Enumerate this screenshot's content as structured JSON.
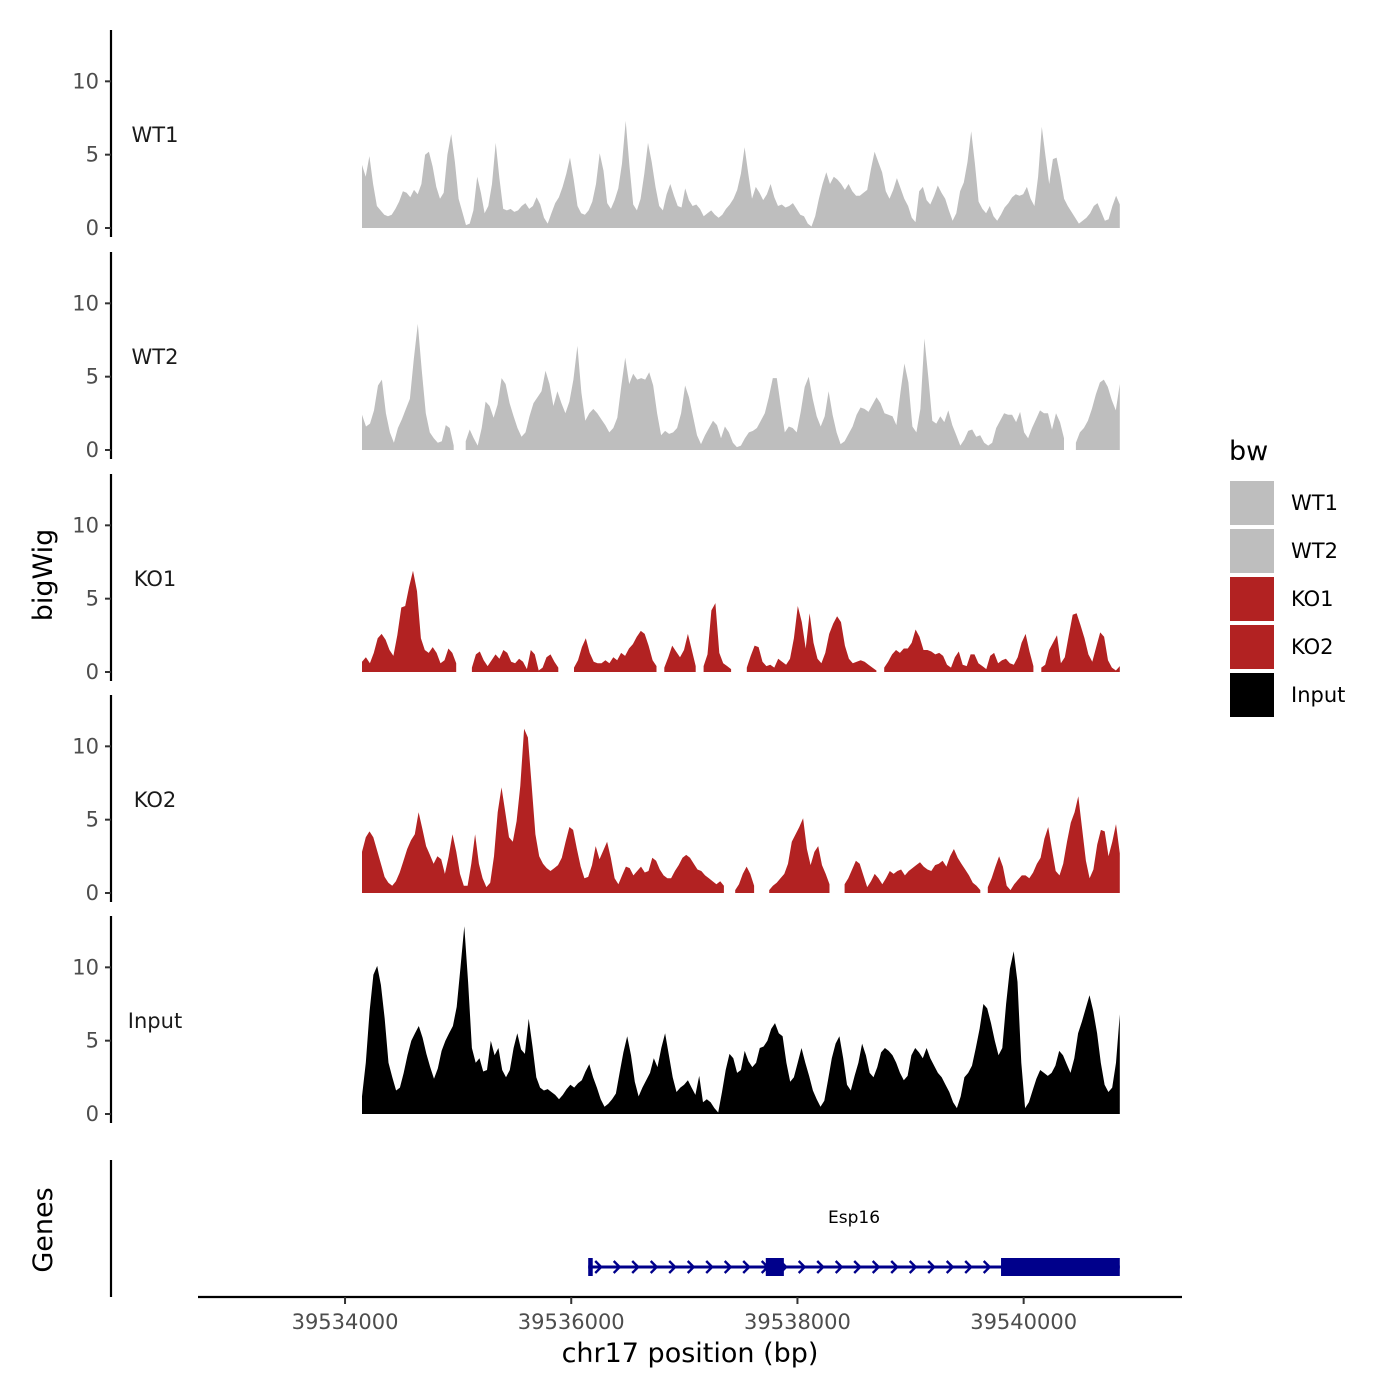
{
  "chart_data": {
    "type": "area",
    "title": "",
    "xlabel": "chr17 position (bp)",
    "ylabel": "bigWig",
    "genes_label": "Genes",
    "x_range": [
      39534150,
      39540850
    ],
    "xlim": [
      39532700,
      39541400
    ],
    "x_ticks": [
      39534000,
      39536000,
      39538000,
      39540000
    ],
    "x_tick_labels": [
      "39534000",
      "39536000",
      "39538000",
      "39540000"
    ],
    "y_ticks": [
      0,
      5,
      10
    ],
    "y_tick_labels": [
      "0",
      "5",
      "10"
    ],
    "ylim": [
      0,
      13.5
    ],
    "legend": {
      "title": "bw",
      "position": "right",
      "entries": [
        {
          "label": "WT1",
          "color": "#BEBEBE"
        },
        {
          "label": "WT2",
          "color": "#BEBEBE"
        },
        {
          "label": "KO1",
          "color": "#B22222"
        },
        {
          "label": "KO2",
          "color": "#B22222"
        },
        {
          "label": "Input",
          "color": "#000000"
        }
      ]
    },
    "series": [
      {
        "name": "WT1",
        "color": "#BEBEBE",
        "values": [
          4.3,
          3.5,
          4.9,
          3.0,
          1.5,
          1.2,
          0.9,
          0.8,
          0.9,
          1.3,
          1.8,
          2.5,
          2.4,
          2.1,
          2.6,
          2.3,
          3.0,
          5.0,
          5.2,
          4.2,
          2.8,
          2.0,
          2.4,
          5.0,
          6.4,
          4.5,
          2.0,
          1.1,
          0.2,
          0.3,
          1.2,
          3.5,
          2.4,
          1.0,
          1.5,
          3.0,
          5.8,
          3.4,
          1.3,
          1.2,
          1.3,
          1.1,
          1.2,
          1.5,
          1.7,
          1.3,
          1.5,
          2.1,
          1.6,
          0.7,
          0.3,
          1.0,
          1.7,
          2.1,
          2.8,
          3.7,
          4.8,
          3.3,
          1.5,
          1.0,
          0.9,
          1.2,
          1.8,
          3.0,
          5.1,
          3.9,
          1.7,
          1.3,
          1.9,
          2.7,
          4.4,
          7.3,
          4.2,
          1.6,
          1.2,
          2.0,
          3.7,
          5.8,
          4.5,
          2.8,
          1.5,
          1.2,
          2.3,
          3.0,
          2.2,
          1.5,
          1.4,
          2.7,
          1.9,
          1.5,
          1.6,
          1.3,
          0.8,
          1.0,
          1.2,
          0.9,
          0.7,
          0.9,
          1.3,
          1.6,
          2.0,
          2.6,
          3.7,
          5.5,
          3.7,
          2.0,
          2.8,
          2.4,
          1.9,
          2.3,
          3.0,
          2.1,
          1.5,
          1.6,
          1.4,
          1.5,
          1.7,
          1.3,
          0.9,
          0.8,
          0.3,
          0.1,
          0.8,
          2.0,
          3.0,
          3.8,
          3.0,
          3.5,
          3.3,
          3.0,
          2.6,
          3.0,
          2.5,
          2.2,
          2.2,
          2.4,
          2.6,
          4.0,
          5.2,
          4.5,
          3.8,
          2.5,
          2.0,
          2.6,
          3.4,
          2.7,
          2.0,
          1.5,
          0.7,
          0.4,
          2.5,
          2.8,
          1.9,
          1.6,
          2.2,
          2.9,
          2.4,
          2.0,
          1.2,
          0.5,
          1.0,
          2.5,
          3.1,
          4.5,
          6.6,
          4.4,
          1.8,
          1.3,
          1.0,
          1.5,
          0.8,
          0.5,
          0.9,
          1.4,
          1.7,
          2.1,
          2.3,
          2.2,
          2.3,
          2.8,
          2.0,
          1.5,
          3.5,
          6.9,
          4.9,
          3.0,
          4.7,
          4.8,
          3.5,
          2.0,
          1.5,
          1.1,
          0.7,
          0.3,
          0.5,
          0.7,
          1.0,
          1.5,
          1.7,
          1.1,
          0.5,
          0.6,
          1.5,
          2.2,
          1.6
        ]
      },
      {
        "name": "WT2",
        "color": "#BEBEBE",
        "values": [
          2.4,
          1.6,
          1.8,
          2.7,
          4.4,
          4.8,
          2.5,
          1.2,
          0.5,
          1.5,
          2.1,
          2.8,
          3.5,
          6.2,
          8.6,
          5.4,
          2.5,
          1.2,
          0.8,
          0.5,
          0.6,
          1.7,
          1.5,
          0.3,
          null,
          null,
          0.6,
          1.4,
          0.8,
          0.3,
          1.5,
          3.3,
          3.0,
          2.2,
          3.1,
          4.9,
          4.5,
          3.2,
          2.3,
          1.5,
          0.9,
          1.2,
          2.3,
          3.2,
          3.6,
          4.0,
          5.4,
          4.5,
          3.0,
          4.0,
          3.2,
          2.5,
          3.3,
          4.8,
          7.1,
          3.9,
          2.0,
          2.5,
          2.8,
          2.5,
          2.1,
          1.7,
          1.2,
          1.5,
          2.2,
          4.3,
          6.3,
          4.5,
          5.2,
          4.8,
          4.9,
          4.8,
          5.3,
          4.4,
          2.5,
          1.0,
          1.3,
          1.1,
          1.2,
          1.5,
          2.5,
          4.4,
          3.6,
          2.3,
          1.0,
          0.4,
          1.0,
          1.5,
          2.0,
          1.7,
          0.8,
          1.6,
          1.2,
          0.5,
          0.2,
          0.3,
          0.8,
          1.2,
          1.3,
          1.5,
          2.0,
          2.5,
          3.6,
          4.9,
          4.9,
          3.0,
          1.2,
          1.6,
          1.5,
          1.2,
          2.6,
          4.3,
          5.0,
          3.5,
          2.3,
          1.6,
          2.3,
          4.0,
          2.4,
          1.2,
          0.4,
          0.6,
          1.1,
          1.6,
          2.4,
          2.9,
          2.8,
          2.6,
          3.1,
          3.6,
          3.2,
          2.5,
          2.4,
          2.3,
          1.7,
          3.9,
          5.9,
          4.6,
          1.6,
          1.2,
          2.8,
          7.6,
          4.9,
          2.0,
          1.8,
          2.3,
          1.9,
          2.7,
          1.7,
          1.0,
          0.3,
          0.7,
          1.3,
          1.4,
          0.9,
          1.0,
          0.5,
          0.3,
          0.5,
          1.5,
          2.0,
          2.5,
          2.4,
          2.4,
          1.9,
          2.6,
          1.2,
          0.8,
          1.5,
          2.1,
          2.7,
          2.5,
          2.5,
          1.4,
          2.5,
          1.9,
          0.8,
          null,
          null,
          0.5,
          1.2,
          1.5,
          2.0,
          2.8,
          3.8,
          4.6,
          4.8,
          4.3,
          3.4,
          2.7,
          4.5
        ]
      },
      {
        "name": "KO1",
        "color": "#B22222",
        "values": [
          0.7,
          1.0,
          0.6,
          1.3,
          2.3,
          2.6,
          2.2,
          1.5,
          1.1,
          2.5,
          4.4,
          4.5,
          5.8,
          6.9,
          5.5,
          2.3,
          1.5,
          1.3,
          1.7,
          1.3,
          0.6,
          0.8,
          1.6,
          1.3,
          0.6,
          null,
          null,
          null,
          0.3,
          1.2,
          1.4,
          0.8,
          0.4,
          0.8,
          1.2,
          0.9,
          1.5,
          1.3,
          0.7,
          0.6,
          0.9,
          0.7,
          0.2,
          1.5,
          1.2,
          0.1,
          0.3,
          1.0,
          1.2,
          0.7,
          0.3,
          null,
          null,
          null,
          0.3,
          0.8,
          1.7,
          2.3,
          1.3,
          0.7,
          0.6,
          0.6,
          0.8,
          0.6,
          1.0,
          0.8,
          1.3,
          1.1,
          1.6,
          1.9,
          2.4,
          2.8,
          2.6,
          1.8,
          0.8,
          0.4,
          null,
          0.3,
          1.0,
          1.8,
          1.4,
          1.0,
          1.5,
          2.6,
          1.5,
          0.4,
          null,
          0.4,
          1.2,
          4.2,
          4.7,
          1.3,
          0.6,
          0.4,
          0.2,
          null,
          null,
          null,
          0.3,
          1.1,
          1.8,
          1.7,
          0.7,
          0.4,
          0.5,
          0.3,
          0.9,
          0.7,
          0.5,
          0.9,
          2.3,
          4.5,
          3.4,
          1.6,
          4.0,
          2.0,
          0.9,
          0.6,
          1.3,
          2.6,
          3.3,
          3.8,
          3.4,
          1.8,
          0.9,
          0.6,
          0.7,
          0.8,
          0.7,
          0.5,
          0.3,
          0.1,
          null,
          0.3,
          0.7,
          1.2,
          1.5,
          1.3,
          1.6,
          1.6,
          2.0,
          2.9,
          2.4,
          1.5,
          1.5,
          1.4,
          1.2,
          1.3,
          1.1,
          0.5,
          0.3,
          1.0,
          1.4,
          0.5,
          0.4,
          1.2,
          1.2,
          0.6,
          0.4,
          0.2,
          1.1,
          1.3,
          0.6,
          0.8,
          0.9,
          0.6,
          0.5,
          1.0,
          2.0,
          2.6,
          1.4,
          0.4,
          null,
          0.3,
          0.5,
          1.5,
          2.0,
          2.5,
          0.6,
          1.0,
          2.5,
          3.9,
          4.0,
          3.2,
          2.3,
          1.2,
          0.7,
          1.7,
          2.7,
          2.4,
          0.8,
          0.3,
          0.1,
          0.4
        ]
      },
      {
        "name": "KO2",
        "color": "#B22222",
        "values": [
          2.8,
          3.8,
          4.2,
          3.8,
          2.9,
          2.0,
          1.1,
          0.7,
          0.5,
          0.8,
          1.4,
          2.2,
          3.0,
          3.6,
          4.0,
          5.5,
          4.4,
          3.2,
          2.6,
          2.0,
          2.5,
          2.3,
          1.3,
          2.5,
          4.0,
          2.8,
          1.3,
          0.5,
          0.5,
          2.0,
          4.0,
          2.0,
          1.0,
          0.4,
          0.7,
          2.5,
          5.5,
          7.2,
          5.5,
          3.8,
          3.5,
          4.9,
          7.3,
          11.2,
          10.6,
          7.3,
          4.0,
          2.5,
          2.0,
          1.7,
          1.5,
          1.7,
          1.9,
          2.4,
          3.5,
          4.5,
          4.3,
          3.0,
          1.8,
          1.0,
          1.1,
          1.9,
          3.2,
          2.3,
          2.9,
          3.5,
          2.4,
          1.0,
          0.6,
          1.2,
          1.8,
          1.7,
          1.2,
          1.5,
          1.8,
          1.4,
          1.5,
          2.4,
          2.2,
          1.6,
          1.2,
          1.0,
          1.0,
          1.5,
          1.9,
          2.4,
          2.6,
          2.4,
          2.0,
          1.6,
          1.5,
          1.2,
          1.0,
          0.8,
          0.6,
          0.8,
          0.5,
          null,
          null,
          0.2,
          0.6,
          1.3,
          1.8,
          1.3,
          0.5,
          null,
          null,
          null,
          0.2,
          0.5,
          0.7,
          1.0,
          1.3,
          2.0,
          3.5,
          4.0,
          4.5,
          5.1,
          3.0,
          1.9,
          2.8,
          3.2,
          1.9,
          1.3,
          0.6,
          null,
          null,
          null,
          0.6,
          1.0,
          1.6,
          2.2,
          2.0,
          1.2,
          0.4,
          0.8,
          1.3,
          1.0,
          0.6,
          1.0,
          1.5,
          1.3,
          1.5,
          1.6,
          1.2,
          1.5,
          1.7,
          1.9,
          2.1,
          1.8,
          1.6,
          1.5,
          1.9,
          2.0,
          2.2,
          1.8,
          2.5,
          3.0,
          2.4,
          2.0,
          1.6,
          1.2,
          0.7,
          0.5,
          0.2,
          null,
          0.4,
          1.0,
          1.8,
          2.5,
          1.8,
          0.5,
          0.2,
          0.6,
          0.9,
          1.2,
          1.2,
          1.0,
          1.4,
          2.0,
          2.4,
          3.7,
          4.5,
          3.0,
          1.5,
          1.2,
          2.0,
          3.5,
          4.8,
          5.5,
          6.6,
          4.4,
          2.2,
          1.0,
          1.6,
          3.3,
          4.3,
          4.2,
          2.5,
          3.5,
          4.7,
          2.7
        ]
      },
      {
        "name": "Input",
        "color": "#000000",
        "values": [
          1.2,
          3.5,
          7.0,
          9.5,
          10.1,
          8.8,
          6.5,
          3.5,
          2.5,
          1.6,
          1.8,
          2.8,
          4.0,
          5.0,
          5.5,
          6.0,
          5.2,
          4.1,
          3.2,
          2.4,
          3.1,
          4.3,
          5.0,
          5.5,
          6.0,
          7.3,
          10.0,
          12.8,
          9.0,
          4.5,
          3.5,
          3.8,
          2.9,
          3.0,
          5.0,
          4.0,
          4.5,
          3.0,
          2.5,
          3.0,
          4.5,
          5.5,
          4.4,
          4.1,
          6.5,
          4.6,
          2.5,
          1.8,
          1.6,
          1.7,
          1.5,
          1.3,
          1.0,
          1.3,
          1.7,
          2.0,
          1.8,
          2.1,
          2.3,
          2.9,
          3.4,
          2.5,
          1.8,
          1.0,
          0.5,
          0.7,
          1.0,
          1.4,
          2.8,
          4.2,
          5.3,
          4.0,
          2.2,
          1.2,
          1.8,
          2.3,
          2.8,
          3.8,
          3.2,
          4.5,
          5.5,
          4.0,
          2.5,
          1.5,
          1.8,
          2.0,
          2.3,
          1.8,
          1.3,
          2.6,
          0.8,
          1.0,
          0.8,
          0.4,
          0.1,
          1.5,
          3.0,
          4.1,
          3.8,
          2.8,
          3.0,
          4.3,
          3.6,
          3.2,
          3.5,
          4.5,
          4.6,
          5.0,
          5.8,
          6.2,
          5.5,
          5.3,
          3.5,
          2.2,
          2.5,
          3.5,
          4.5,
          3.5,
          2.6,
          1.6,
          1.0,
          0.5,
          0.9,
          2.3,
          3.8,
          4.8,
          5.3,
          3.8,
          2.0,
          1.6,
          2.6,
          3.5,
          4.8,
          4.0,
          2.8,
          2.5,
          3.2,
          4.2,
          4.5,
          4.3,
          4.0,
          3.5,
          2.8,
          2.3,
          2.6,
          4.0,
          4.5,
          4.2,
          3.8,
          4.5,
          3.8,
          3.3,
          2.8,
          2.5,
          2.0,
          1.5,
          0.8,
          0.4,
          1.2,
          2.5,
          2.8,
          3.3,
          4.5,
          5.8,
          7.5,
          7.2,
          6.2,
          5.0,
          4.0,
          4.5,
          7.5,
          9.9,
          11.1,
          9.0,
          3.5,
          0.4,
          0.8,
          1.6,
          2.4,
          3.0,
          2.8,
          2.6,
          2.8,
          3.3,
          4.3,
          4.0,
          3.4,
          2.8,
          3.8,
          5.5,
          6.3,
          7.2,
          8.1,
          7.0,
          5.5,
          3.5,
          2.0,
          1.5,
          1.8,
          3.5,
          6.8
        ]
      }
    ],
    "genes": [
      {
        "name": "Esp16",
        "start": 39536150,
        "end": 39540850,
        "strand": "+",
        "color": "#00008B",
        "exons": [
          [
            39536150,
            39536190
          ],
          [
            39537720,
            39537880
          ],
          [
            39539800,
            39540850
          ]
        ]
      }
    ]
  }
}
